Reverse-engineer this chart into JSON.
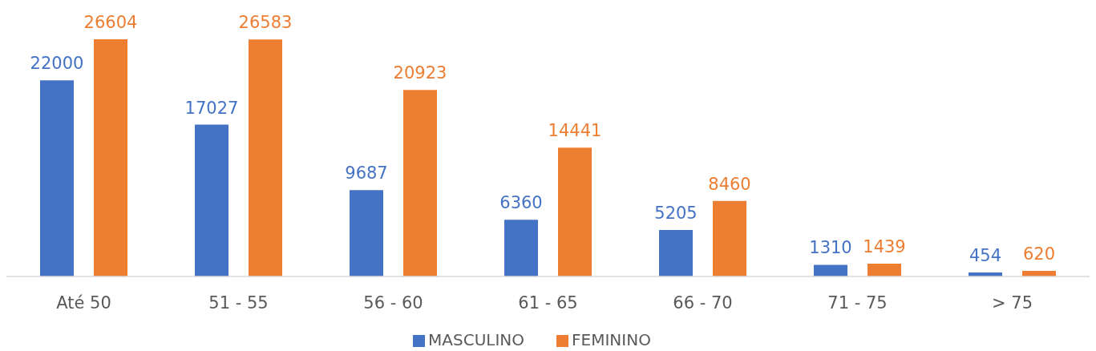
{
  "chart_data": {
    "type": "bar",
    "categories": [
      "Até 50",
      "51 - 55",
      "56 - 60",
      "61 - 65",
      "66 - 70",
      "71 - 75",
      "> 75"
    ],
    "series": [
      {
        "name": "MASCULINO",
        "color": "#4472c4",
        "values": [
          22000,
          17027,
          9687,
          6360,
          5205,
          1310,
          454
        ]
      },
      {
        "name": "FEMININO",
        "color": "#ed7d31",
        "values": [
          26604,
          26583,
          20923,
          14441,
          8460,
          1439,
          620
        ]
      }
    ],
    "data_labels": true,
    "legend": "bottom",
    "tick_labels": "x"
  }
}
